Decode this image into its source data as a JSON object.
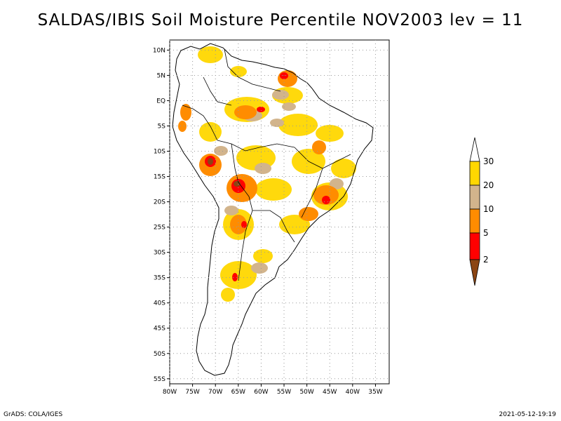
{
  "title": "SALDAS/IBIS Soil Moisture Percentile NOV2003 lev = 11",
  "footer": {
    "left": "GrADS: COLA/IGES",
    "right": "2021-05-12-19:19"
  },
  "map": {
    "lon_range": [
      -80,
      -32
    ],
    "lat_range": [
      -56,
      12
    ],
    "x_ticks": [
      {
        "lon": -80,
        "label": "80W"
      },
      {
        "lon": -75,
        "label": "75W"
      },
      {
        "lon": -70,
        "label": "70W"
      },
      {
        "lon": -65,
        "label": "65W"
      },
      {
        "lon": -60,
        "label": "60W"
      },
      {
        "lon": -55,
        "label": "55W"
      },
      {
        "lon": -50,
        "label": "50W"
      },
      {
        "lon": -45,
        "label": "45W"
      },
      {
        "lon": -40,
        "label": "40W"
      },
      {
        "lon": -35,
        "label": "35W"
      }
    ],
    "y_ticks": [
      {
        "lat": 10,
        "label": "10N"
      },
      {
        "lat": 5,
        "label": "5N"
      },
      {
        "lat": 0,
        "label": "EQ"
      },
      {
        "lat": -5,
        "label": "5S"
      },
      {
        "lat": -10,
        "label": "10S"
      },
      {
        "lat": -15,
        "label": "15S"
      },
      {
        "lat": -20,
        "label": "20S"
      },
      {
        "lat": -25,
        "label": "25S"
      },
      {
        "lat": -30,
        "label": "30S"
      },
      {
        "lat": -35,
        "label": "35S"
      },
      {
        "lat": -40,
        "label": "40S"
      },
      {
        "lat": -45,
        "label": "45S"
      },
      {
        "lat": -50,
        "label": "50S"
      },
      {
        "lat": -55,
        "label": "55S"
      }
    ],
    "grid": true
  },
  "colorbar": {
    "labels": [
      "2",
      "5",
      "10",
      "20",
      "30"
    ],
    "colors": [
      "#8b4513",
      "#ff0000",
      "#ff8c00",
      "#d2b48c",
      "#ffd700",
      "#ffffff"
    ]
  },
  "colors": {
    "c_lt2": "#8b4513",
    "c_2_5": "#ff0000",
    "c_5_10": "#ff8c00",
    "c_10_20": "#d2b48c",
    "c_20_30": "#ffd700"
  }
}
